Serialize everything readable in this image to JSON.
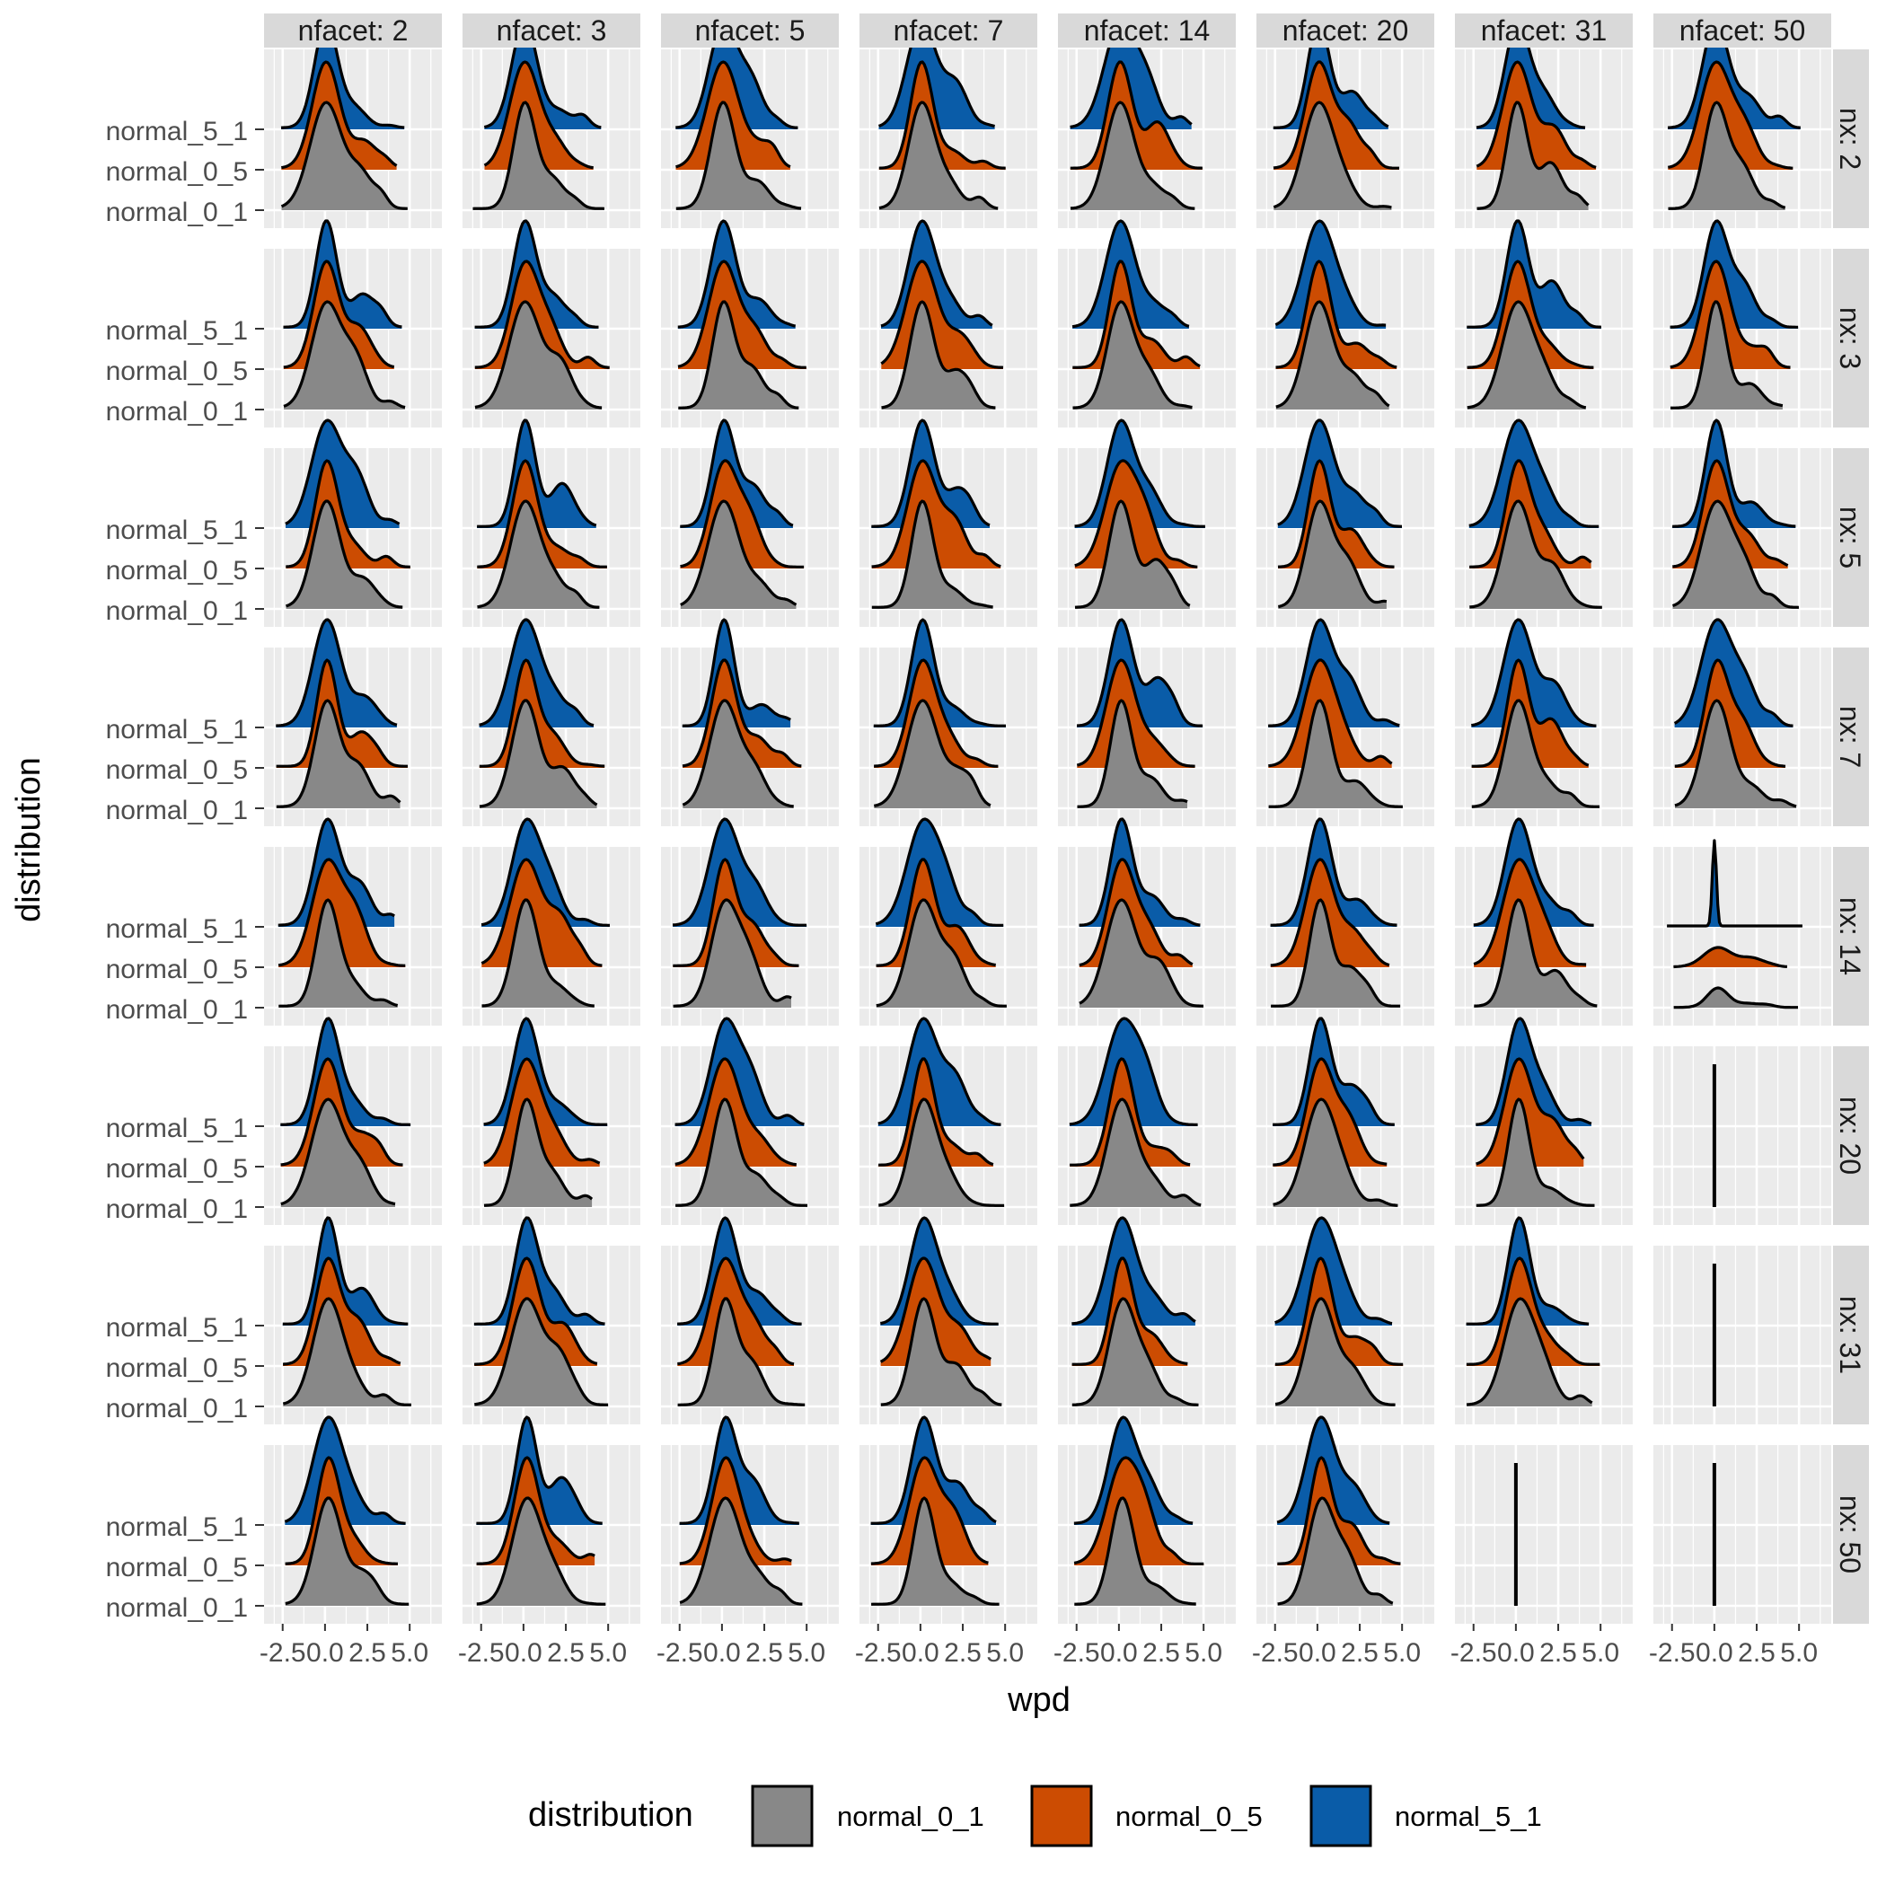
{
  "chart_data": {
    "type": "ridgeline",
    "facet_layout": "grid",
    "column_facets": [
      "nfacet: 2",
      "nfacet: 3",
      "nfacet: 5",
      "nfacet: 7",
      "nfacet: 14",
      "nfacet: 20",
      "nfacet: 31",
      "nfacet: 50"
    ],
    "row_facets": [
      "nx: 2",
      "nx: 3",
      "nx: 5",
      "nx: 7",
      "nx: 14",
      "nx: 20",
      "nx: 31",
      "nx: 50"
    ],
    "xlabel": "wpd",
    "ylabel": "distribution",
    "xlim": [
      -3.6,
      6.9
    ],
    "x_ticks": [
      -2.5,
      0.0,
      2.5,
      5.0
    ],
    "x_tick_labels": [
      "-2.5",
      "0.0",
      "2.5",
      "5.0"
    ],
    "categories": [
      "normal_0_1",
      "normal_0_5",
      "normal_5_1"
    ],
    "series": [
      {
        "name": "normal_0_1",
        "color": "#888888"
      },
      {
        "name": "normal_0_5",
        "color": "#CC4C02"
      },
      {
        "name": "normal_5_1",
        "color": "#0A5CA8"
      }
    ],
    "density_shape_approx": {
      "mode": 0.0,
      "sd": 0.8,
      "right_skew": true,
      "range": [
        -3.0,
        5.0
      ]
    },
    "degenerate_panels": [
      {
        "row": "nx: 14",
        "col": "nfacet: 50",
        "note": "normal_5_1 very narrow spike at 0; normal_0_5 and normal_0_1 low flat densities"
      },
      {
        "row": "nx: 20",
        "col": "nfacet: 50",
        "note": "all distributions collapsed to a vertical line at 0"
      },
      {
        "row": "nx: 31",
        "col": "nfacet: 50",
        "note": "all distributions collapsed to a vertical line at 0"
      },
      {
        "row": "nx: 50",
        "col": "nfacet: 31",
        "note": "all distributions collapsed to a vertical line at 0"
      },
      {
        "row": "nx: 50",
        "col": "nfacet: 50",
        "note": "all distributions collapsed to a vertical line at 0"
      }
    ],
    "legend": {
      "title": "distribution",
      "position": "bottom"
    },
    "panel_background": "#EBEBEB",
    "strip_background": "#D9D9D9",
    "grid": true
  }
}
